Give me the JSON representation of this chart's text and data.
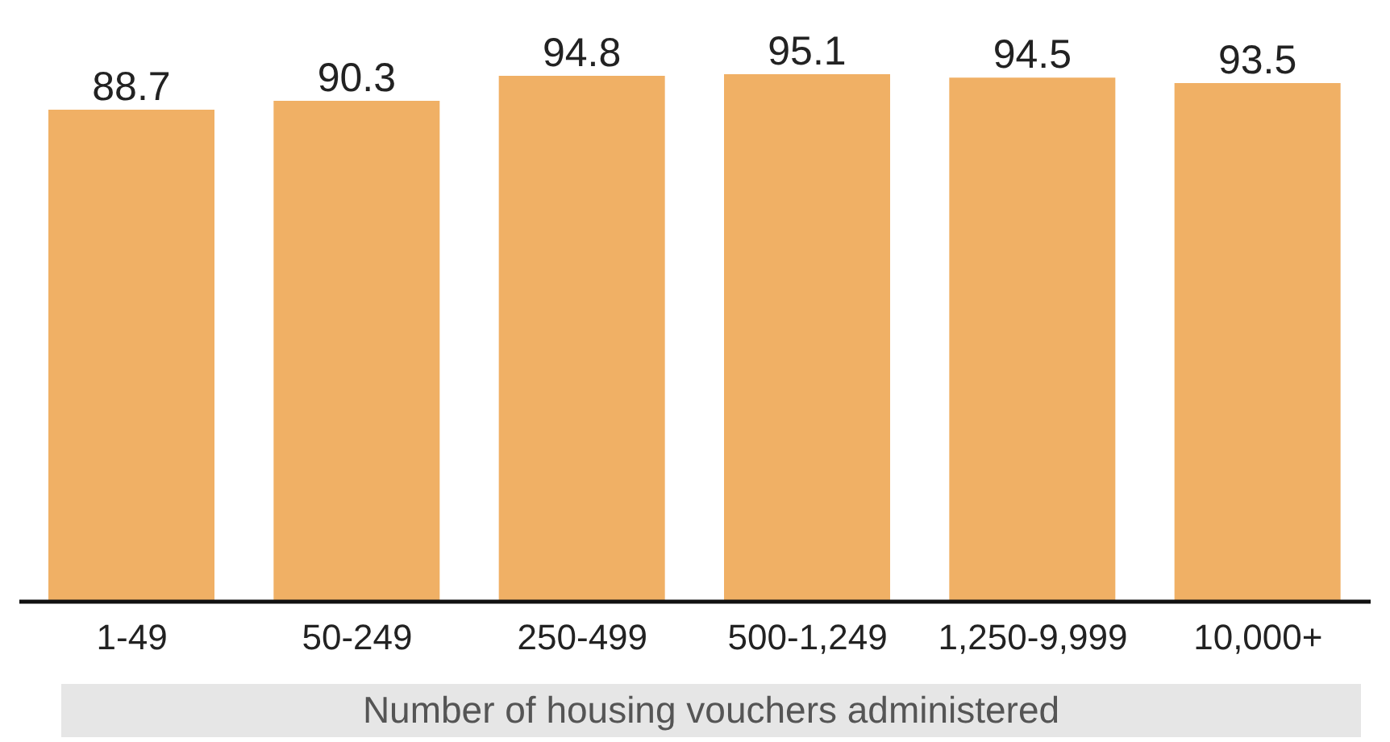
{
  "chart_data": {
    "type": "bar",
    "xlabel": "Number of housing vouchers administered",
    "categories": [
      "1-49",
      "50-249",
      "250-499",
      "500-1,249",
      "1,250-9,999",
      "10,000+"
    ],
    "values": [
      88.7,
      90.3,
      94.8,
      95.1,
      94.5,
      93.5
    ],
    "color": "#f0b065",
    "data_labels": true
  }
}
